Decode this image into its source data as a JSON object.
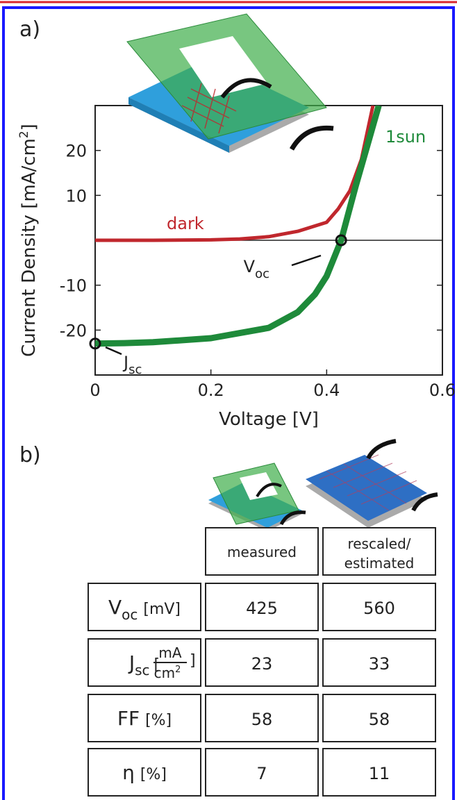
{
  "panel_a": "a)",
  "panel_b": "b)",
  "chart_data": {
    "type": "line",
    "xlabel": "Voltage [V]",
    "ylabel": {
      "text": "Current Density [mA/cm",
      "sup": "2",
      "end": "]"
    },
    "xlim": [
      0,
      0.6
    ],
    "ylim": [
      -30,
      30
    ],
    "xticks": [
      0,
      0.2,
      0.4,
      0.6
    ],
    "yticks": [
      -20,
      -10,
      10,
      20
    ],
    "series": [
      {
        "name": "dark",
        "color": "#c0272d",
        "x": [
          0,
          0.1,
          0.2,
          0.25,
          0.3,
          0.35,
          0.4,
          0.42,
          0.44,
          0.46,
          0.48
        ],
        "values": [
          0,
          0,
          0.1,
          0.3,
          0.8,
          2,
          4,
          7,
          11,
          18,
          30
        ]
      },
      {
        "name": "1sun",
        "color": "#1e8a3a",
        "x": [
          0,
          0.05,
          0.1,
          0.2,
          0.3,
          0.35,
          0.38,
          0.4,
          0.425,
          0.45,
          0.47,
          0.49
        ],
        "values": [
          -23,
          -22.9,
          -22.7,
          -21.8,
          -19.5,
          -16,
          -12,
          -8,
          0,
          12,
          21,
          30
        ]
      }
    ],
    "markers": [
      {
        "label": "V",
        "sub": "oc",
        "x": 0.425,
        "y": 0
      },
      {
        "label": "J",
        "sub": "sc",
        "x": 0,
        "y": -23
      }
    ]
  },
  "table": {
    "header": [
      "measured",
      "rescaled/",
      "estimated"
    ],
    "rows": [
      {
        "main": "V",
        "sub": "oc",
        "unit": "[mV]",
        "values": [
          425,
          560
        ]
      },
      {
        "main": "J",
        "sub": "sc",
        "unit_open": "[",
        "unit_num": "mA",
        "unit_den": "cm",
        "unit_sup": "2",
        "unit_close": "]",
        "values": [
          23,
          33
        ]
      },
      {
        "main": "FF",
        "unit": "[%]",
        "values": [
          58,
          58
        ]
      },
      {
        "main": "η",
        "unit": "[%]",
        "values": [
          7,
          11
        ]
      }
    ]
  }
}
